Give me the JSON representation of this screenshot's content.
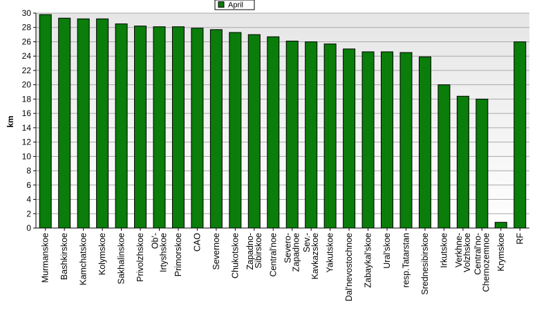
{
  "chart_data": {
    "type": "bar",
    "title": "",
    "xlabel": "",
    "ylabel": "km",
    "ylim": [
      0,
      30
    ],
    "ytick_step": 2,
    "grid": true,
    "legend_position": "top-center",
    "series": [
      {
        "name": "April",
        "color": "#0a7d0a",
        "values": [
          29.8,
          29.3,
          29.2,
          29.2,
          28.5,
          28.2,
          28.1,
          28.1,
          27.9,
          27.7,
          27.3,
          27.0,
          26.7,
          26.1,
          26.0,
          25.7,
          25.0,
          24.6,
          24.6,
          24.5,
          23.9,
          20.0,
          18.4,
          18.0,
          0.8,
          26.0
        ]
      }
    ],
    "categories": [
      "Murmanskoe",
      "Bashkirskoe",
      "Kamchatskoe",
      "Kolymskoe",
      "Sakhalinskoe",
      "Privolzhskoe",
      "Ob'-Irtyshskoe",
      "Primorskoe",
      "CAO",
      "Severnoe",
      "Chukotskoe",
      "Zapadno-Sibirskoe",
      "Central'noe",
      "Severo-Zapadnoe",
      "Sev.-Kavkazskoe",
      "Yakutskoe",
      "Dal'nevostochnoe",
      "Zabaykal'skoe",
      "Ural'skoe",
      "resp.Tatarstan",
      "Srednesibirskoe",
      "Irkutskoe",
      "Verkhne-Volzhskoe",
      "Central'no-Chernozemnoe",
      "Krymskoe",
      "RF"
    ],
    "category_lines": [
      [
        "Murmanskoe"
      ],
      [
        "Bashkirskoe"
      ],
      [
        "Kamchatskoe"
      ],
      [
        "Kolymskoe"
      ],
      [
        "Sakhalinskoe"
      ],
      [
        "Privolzhskoe"
      ],
      [
        "Ob'-",
        "Irtyshskoe"
      ],
      [
        "Primorskoe"
      ],
      [
        "CAO"
      ],
      [
        "Severnoe"
      ],
      [
        "Chukotskoe"
      ],
      [
        "Zapadno-",
        "Sibirskoe"
      ],
      [
        "Central'noe"
      ],
      [
        "Severo-",
        "Zapadnoe"
      ],
      [
        "Sev.-",
        "Kavkazskoe"
      ],
      [
        "Yakutskoe"
      ],
      [
        "Dal'nevostochnoe"
      ],
      [
        "Zabaykal'skoe"
      ],
      [
        "Ural'skoe"
      ],
      [
        "resp.Tatarstan"
      ],
      [
        "Srednesibirskoe"
      ],
      [
        "Irkutskoe"
      ],
      [
        "Verkhne-",
        "Volzhskoe"
      ],
      [
        "Central'no-",
        "Chernozemnoe"
      ],
      [
        "Krymskoe"
      ],
      [
        "RF"
      ]
    ]
  }
}
